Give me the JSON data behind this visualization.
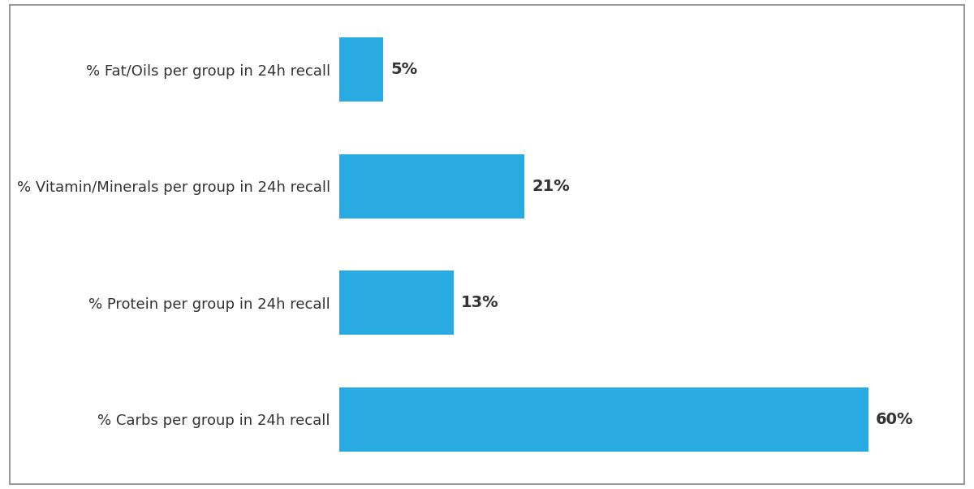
{
  "categories": [
    "% Fat/Oils per group in 24h recall",
    "% Vitamin/Minerals per group in 24h recall",
    "% Protein per group in 24h recall",
    "% Carbs per group in 24h recall"
  ],
  "values": [
    5,
    21,
    13,
    60
  ],
  "bar_color": "#29ABE2",
  "label_color": "#333333",
  "background_color": "#ffffff",
  "border_color": "#999999",
  "grid_color": "#cccccc",
  "bar_height": 0.55,
  "xlim": [
    0,
    70
  ],
  "label_fontsize": 13,
  "value_fontsize": 14,
  "value_fontweight": "bold"
}
